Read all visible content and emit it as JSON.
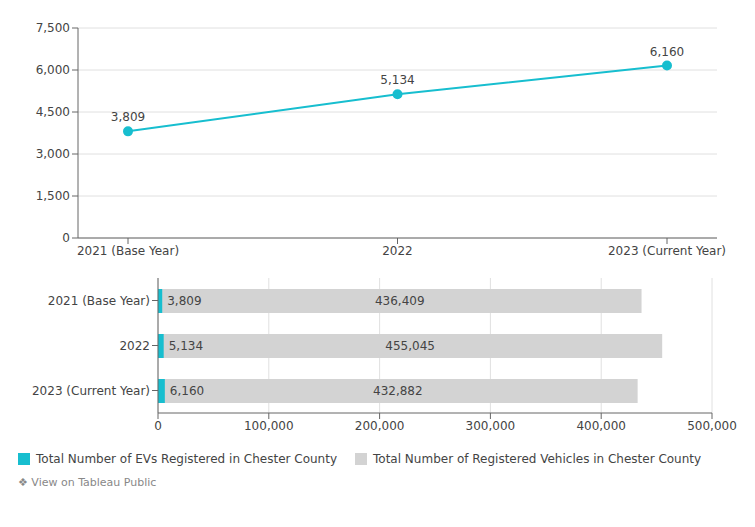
{
  "chart_data": [
    {
      "type": "line",
      "categories": [
        "2021 (Base Year)",
        "2022",
        "2023 (Current Year)"
      ],
      "values": [
        3809,
        5134,
        6160
      ],
      "value_labels": [
        "3,809",
        "5,134",
        "6,160"
      ],
      "data_labels": true,
      "color": "#17becf",
      "marker": "circle",
      "ylim": [
        0,
        7500
      ],
      "yticks": [
        0,
        {
          "value": 1500,
          "label": "1,500"
        },
        {
          "value": 3000,
          "label": "3,000"
        },
        {
          "value": 4500,
          "label": "4,500"
        },
        {
          "value": 6000,
          "label": "6,000"
        },
        {
          "value": 7500,
          "label": "7,500"
        }
      ],
      "grid": true
    },
    {
      "type": "bar",
      "orientation": "horizontal",
      "stacked": false,
      "categories": [
        "2021 (Base Year)",
        "2022",
        "2023 (Current Year)"
      ],
      "series": [
        {
          "name": "Total Number of EVs Registered in Chester County",
          "color": "#17becf",
          "values": [
            3809,
            5134,
            6160
          ],
          "value_labels": [
            "3,809",
            "5,134",
            "6,160"
          ]
        },
        {
          "name": "Total Number of Registered Vehicles in Chester County",
          "color": "#d3d3d3",
          "values": [
            436409,
            455045,
            432882
          ],
          "value_labels": [
            "436,409",
            "455,045",
            "432,882"
          ]
        }
      ],
      "data_labels": true,
      "xlim": [
        0,
        500000
      ],
      "xticks": [
        0,
        {
          "value": 100000,
          "label": "100,000"
        },
        {
          "value": 200000,
          "label": "200,000"
        },
        {
          "value": 300000,
          "label": "300,000"
        },
        {
          "value": 400000,
          "label": "400,000"
        },
        {
          "value": 500000,
          "label": "500,000"
        }
      ],
      "grid": true,
      "legend": "lower left",
      "annotations": [
        "❖ View on Tableau Public"
      ]
    }
  ]
}
